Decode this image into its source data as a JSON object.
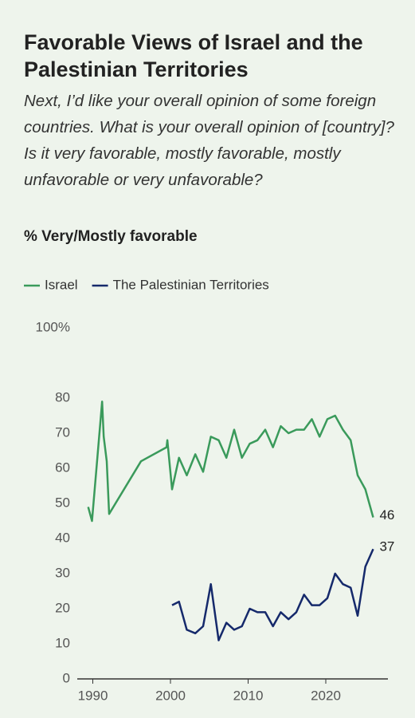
{
  "chart_data": {
    "type": "line",
    "title": "Favorable Views of Israel and the Palestinian Territories",
    "subtitle": "Next, I’d like your overall opinion of some foreign countries. What is your overall opinion of [country]? Is it very favorable, mostly favorable, mostly unfavorable or very unfavorable?",
    "y_label": "% Very/Mostly favorable",
    "legend": "top-left",
    "xlim": [
      1988,
      2028
    ],
    "xticks": [
      1990,
      2000,
      2010,
      2020
    ],
    "ylim": [
      0,
      100
    ],
    "yticks": [
      0,
      10,
      20,
      30,
      40,
      50,
      60,
      70,
      80,
      {
        "value": 100,
        "label": "100%"
      }
    ],
    "series": [
      {
        "name": "Israel",
        "color": "#3a9a5b",
        "x": [
          1989.4,
          1989.9,
          1991.2,
          1991.4,
          1991.8,
          1992.1,
          1996.2,
          1999.5,
          1999.6,
          2000.2,
          2001.1,
          2002.1,
          2003.2,
          2004.2,
          2005.2,
          2006.2,
          2007.2,
          2008.2,
          2009.2,
          2010.2,
          2011.2,
          2012.2,
          2013.2,
          2014.2,
          2015.2,
          2016.2,
          2017.2,
          2018.2,
          2019.2,
          2020.2,
          2021.2,
          2022.2,
          2023.2,
          2024.1,
          2025.1,
          2026.1
        ],
        "values": [
          49,
          45,
          79,
          69,
          62,
          47,
          62,
          66,
          68,
          54,
          63,
          58,
          64,
          59,
          69,
          68,
          63,
          71,
          63,
          67,
          68,
          71,
          66,
          72,
          70,
          71,
          71,
          74,
          69,
          74,
          75,
          71,
          68,
          58,
          54,
          46
        ]
      },
      {
        "name": "The Palestinian Territories",
        "color": "#15296b",
        "x": [
          2000.2,
          2001.1,
          2002.1,
          2003.2,
          2004.2,
          2005.2,
          2006.2,
          2007.2,
          2008.2,
          2009.2,
          2010.2,
          2011.2,
          2012.2,
          2013.2,
          2014.2,
          2015.2,
          2016.2,
          2017.2,
          2018.2,
          2019.2,
          2020.2,
          2021.2,
          2022.2,
          2023.2,
          2024.1,
          2025.1,
          2026.1
        ],
        "values": [
          21,
          22,
          14,
          13,
          15,
          27,
          11,
          16,
          14,
          15,
          20,
          19,
          19,
          15,
          19,
          17,
          19,
          24,
          21,
          21,
          23,
          30,
          27,
          26,
          18,
          32,
          37
        ]
      }
    ]
  }
}
